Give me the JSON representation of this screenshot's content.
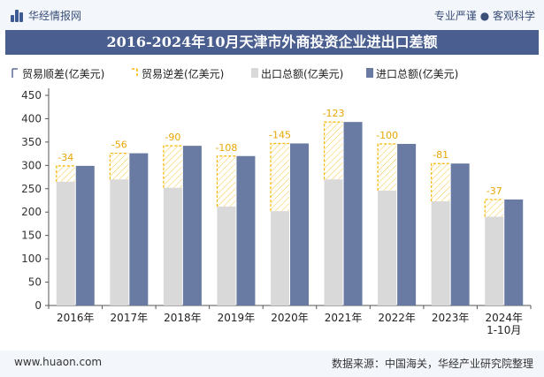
{
  "header": {
    "brand": "华经情报网",
    "tagline": "专业严谨 ● 客观科学",
    "title": "2016-2024年10月天津市外商投资企业进出口差额"
  },
  "footer": {
    "url": "www.huaon.com",
    "source": "数据来源：中国海关，华经产业研究院整理"
  },
  "watermark": "华经产业研究院",
  "colors": {
    "export": "#d9d9d9",
    "import": "#6a7ba3",
    "balance": "#f5b700",
    "axis": "#555555"
  },
  "chart_data": {
    "type": "bar",
    "categories": [
      "2016年",
      "2017年",
      "2018年",
      "2019年",
      "2020年",
      "2021年",
      "2022年",
      "2023年",
      "2024年\n1-10月"
    ],
    "series": [
      {
        "name": "贸易顺差(亿美元)",
        "values": [
          null,
          null,
          null,
          null,
          null,
          null,
          null,
          null,
          null
        ]
      },
      {
        "name": "贸易逆差(亿美元)",
        "values": [
          -34,
          -56,
          -90,
          -108,
          -145,
          -123,
          -100,
          -81,
          -37
        ]
      },
      {
        "name": "出口总额(亿美元)",
        "values": [
          265,
          270,
          252,
          212,
          202,
          270,
          246,
          223,
          190
        ]
      },
      {
        "name": "进口总额(亿美元)",
        "values": [
          299,
          326,
          342,
          320,
          347,
          393,
          346,
          304,
          227
        ]
      }
    ],
    "ylim": [
      0,
      450
    ],
    "yticks": [
      0,
      50,
      100,
      150,
      200,
      250,
      300,
      350,
      400,
      450
    ],
    "legend": "top"
  }
}
